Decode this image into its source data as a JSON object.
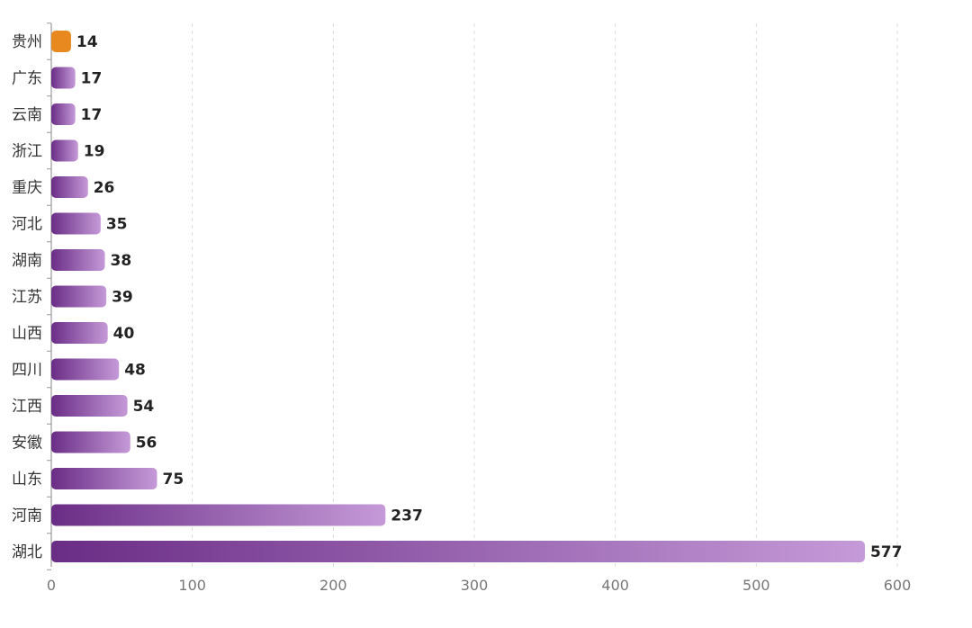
{
  "chart_data": {
    "type": "bar",
    "orientation": "horizontal",
    "categories": [
      "贵州",
      "广东",
      "云南",
      "浙江",
      "重庆",
      "河北",
      "湖南",
      "江苏",
      "山西",
      "四川",
      "江西",
      "安徽",
      "山东",
      "河南",
      "湖北"
    ],
    "values": [
      14,
      17,
      17,
      19,
      26,
      35,
      38,
      39,
      40,
      48,
      54,
      56,
      75,
      237,
      577
    ],
    "xlim": [
      0,
      600
    ],
    "xticks": [
      0,
      100,
      200,
      300,
      400,
      500,
      600
    ],
    "grid": true,
    "highlight_index": 0,
    "colors": {
      "highlight": "#e8891f",
      "bar_dark": "#6a2d86",
      "bar_light": "#c59ad8",
      "grid": "#dddddd",
      "axis": "#999999"
    }
  }
}
